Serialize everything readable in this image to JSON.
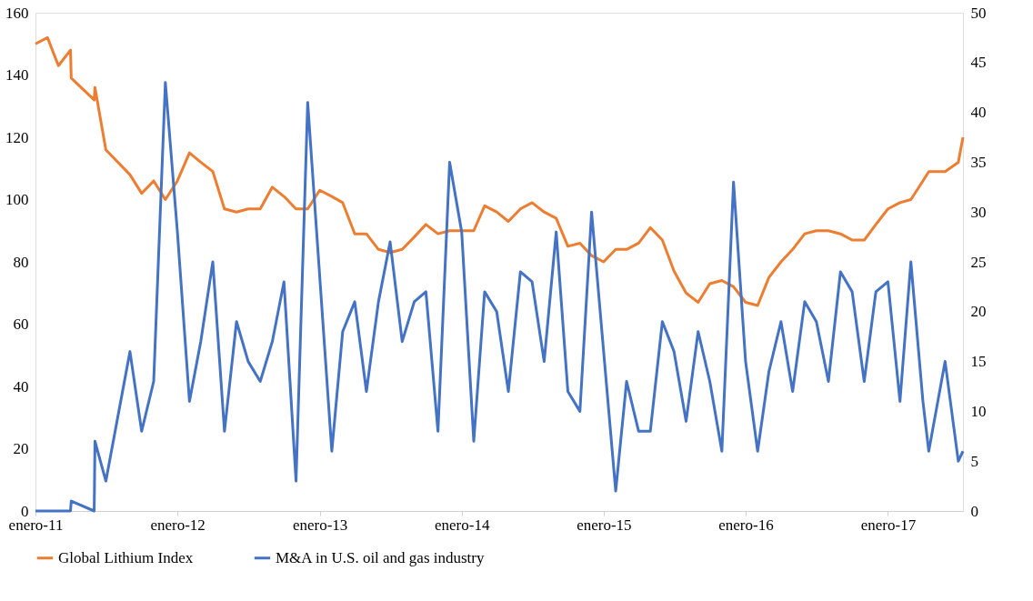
{
  "chart_data": {
    "type": "line",
    "xlim": [
      "2011-01",
      "2017-07-13"
    ],
    "xticks": [
      {
        "value": "2011-01",
        "label": "enero-11"
      },
      {
        "value": "2012-01",
        "label": "enero-12"
      },
      {
        "value": "2013-01",
        "label": "enero-13"
      },
      {
        "value": "2014-01",
        "label": "enero-14"
      },
      {
        "value": "2015-01",
        "label": "enero-15"
      },
      {
        "value": "2016-01",
        "label": "enero-16"
      },
      {
        "value": "2017-01",
        "label": "enero-17"
      }
    ],
    "ylim": [
      0,
      160
    ],
    "yticks": [
      0,
      20,
      40,
      60,
      80,
      100,
      120,
      140,
      160
    ],
    "y2lim": [
      0,
      50
    ],
    "y2ticks": [
      0,
      5,
      10,
      15,
      20,
      25,
      30,
      35,
      40,
      45,
      50
    ],
    "grid": false,
    "legend": "bottom",
    "line_style": "solid",
    "marker": "none",
    "series": [
      {
        "name": "Global Lithium Index",
        "color": "#ed7d31",
        "axis": "y",
        "x": [
          "2011-01",
          "2011-02",
          "2011-03",
          "2011-04-01",
          "2011-04-03",
          "2011-06-01",
          "2011-06-03",
          "2011-07",
          "2011-09",
          "2011-10",
          "2011-11",
          "2011-12",
          "2012-01",
          "2012-02",
          "2012-03",
          "2012-04",
          "2012-05",
          "2012-06",
          "2012-07",
          "2012-08",
          "2012-09",
          "2012-10",
          "2012-11",
          "2012-12",
          "2013-01",
          "2013-02",
          "2013-03",
          "2013-04",
          "2013-05",
          "2013-06",
          "2013-07",
          "2013-08",
          "2013-09",
          "2013-10",
          "2013-11",
          "2013-12",
          "2014-02",
          "2014-03",
          "2014-04",
          "2014-05",
          "2014-06",
          "2014-07",
          "2014-08",
          "2014-09",
          "2014-10",
          "2014-11",
          "2014-12",
          "2015-01",
          "2015-02",
          "2015-03",
          "2015-04",
          "2015-05",
          "2015-06",
          "2015-07",
          "2015-08",
          "2015-09",
          "2015-10",
          "2015-11",
          "2015-12",
          "2016-01",
          "2016-02",
          "2016-03",
          "2016-04",
          "2016-05",
          "2016-06",
          "2016-07",
          "2016-08",
          "2016-09",
          "2016-10",
          "2016-11",
          "2016-12",
          "2017-01",
          "2017-02",
          "2017-03",
          "2017-04",
          "2017-04-16",
          "2017-05-28",
          "2017-07-01",
          "2017-07-13"
        ],
        "values": [
          150,
          152,
          143,
          148,
          139,
          132,
          136,
          116,
          108,
          102,
          106,
          100,
          106,
          115,
          112,
          109,
          97,
          96,
          97,
          97,
          104,
          101,
          97,
          97,
          103,
          101,
          99,
          89,
          89,
          84,
          83,
          84,
          88,
          92,
          89,
          90,
          90,
          98,
          96,
          93,
          97,
          99,
          96,
          94,
          85,
          86,
          82,
          80,
          84,
          84,
          86,
          91,
          87,
          77,
          70,
          67,
          73,
          74,
          72,
          67,
          66,
          75,
          80,
          84,
          89,
          90,
          90,
          89,
          87,
          87,
          92,
          97,
          99,
          100,
          106,
          109,
          109,
          112,
          120
        ]
      },
      {
        "name": "M&A in U.S. oil and gas industry",
        "color": "#4472c4",
        "axis": "y2",
        "x": [
          "2011-01",
          "2011-02",
          "2011-03",
          "2011-04-01",
          "2011-04-03",
          "2011-06-01",
          "2011-06-03",
          "2011-07",
          "2011-09",
          "2011-10",
          "2011-11",
          "2011-12",
          "2012-01",
          "2012-02",
          "2012-03",
          "2012-04",
          "2012-05",
          "2012-06",
          "2012-07",
          "2012-08",
          "2012-09",
          "2012-10",
          "2012-11",
          "2012-12",
          "2013-02",
          "2013-03",
          "2013-04",
          "2013-05",
          "2013-06",
          "2013-07",
          "2013-08",
          "2013-09",
          "2013-10",
          "2013-11",
          "2013-12",
          "2014-01",
          "2014-02",
          "2014-03",
          "2014-04",
          "2014-05",
          "2014-06",
          "2014-07",
          "2014-08",
          "2014-09",
          "2014-10",
          "2014-11",
          "2014-12",
          "2015-02",
          "2015-03",
          "2015-04",
          "2015-05",
          "2015-06",
          "2015-07",
          "2015-08",
          "2015-09",
          "2015-10",
          "2015-11",
          "2015-12",
          "2016-01",
          "2016-02",
          "2016-03",
          "2016-04",
          "2016-05",
          "2016-06",
          "2016-07",
          "2016-08",
          "2016-09",
          "2016-10",
          "2016-11",
          "2016-12",
          "2017-01",
          "2017-02",
          "2017-03",
          "2017-04",
          "2017-04-16",
          "2017-05-28",
          "2017-07-01",
          "2017-07-13"
        ],
        "values": [
          0,
          0,
          0,
          0,
          1,
          0,
          7,
          3,
          16,
          8,
          13,
          43,
          28,
          11,
          17,
          25,
          8,
          19,
          15,
          13,
          17,
          23,
          3,
          41,
          6,
          18,
          21,
          12,
          21,
          27,
          17,
          21,
          22,
          8,
          35,
          28,
          7,
          22,
          20,
          12,
          24,
          23,
          15,
          28,
          12,
          10,
          30,
          2,
          13,
          8,
          8,
          19,
          16,
          9,
          18,
          13,
          6,
          33,
          15,
          6,
          14,
          19,
          12,
          21,
          19,
          13,
          24,
          22,
          13,
          22,
          23,
          11,
          25,
          11,
          6,
          15,
          5,
          6
        ]
      }
    ]
  }
}
